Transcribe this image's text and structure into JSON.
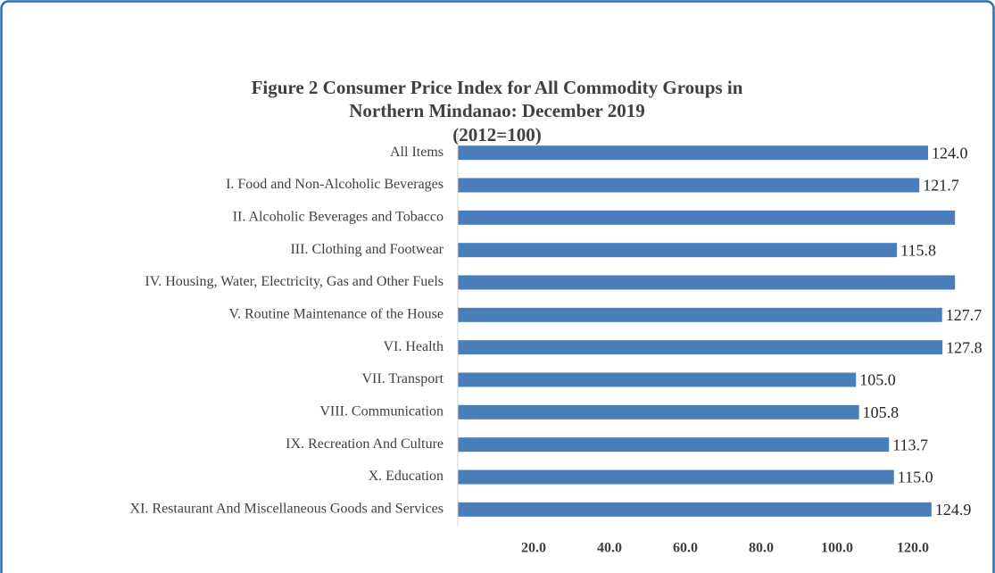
{
  "chart_data": {
    "type": "hbar",
    "title": [
      "Figure 2 Consumer Price Index for All Commodity Groups in",
      "Northern Mindanao: December 2019",
      "(2012=100)"
    ],
    "categories": [
      "All Items",
      "I. Food and Non-Alcoholic Beverages",
      "II. Alcoholic Beverages and Tobacco",
      "III. Clothing and Footwear",
      "IV. Housing, Water, Electricity, Gas and Other Fuels",
      "V. Routine Maintenance of the House",
      "VI. Health",
      "VII. Transport",
      "VIII. Communication",
      "IX. Recreation And Culture",
      "X. Education",
      "XI. Restaurant And Miscellaneous Goods and Services"
    ],
    "values": [
      124.0,
      121.7,
      131.1,
      115.8,
      131.1,
      127.7,
      127.8,
      105.0,
      105.8,
      113.7,
      115.0,
      124.9
    ],
    "value_labels": [
      "124.0",
      "121.7",
      null,
      "115.8",
      null,
      "127.7",
      "127.8",
      "105.0",
      "105.8",
      "113.7",
      "115.0",
      "124.9"
    ],
    "color": "#4a7ebb",
    "xlim": [
      0,
      140
    ],
    "xticks": [
      {
        "value": 20,
        "label": "20.0"
      },
      {
        "value": 40,
        "label": "40.0"
      },
      {
        "value": 60,
        "label": "60.0"
      },
      {
        "value": 80,
        "label": "80.0"
      },
      {
        "value": 100,
        "label": "100.0"
      },
      {
        "value": 120,
        "label": "120.0"
      }
    ],
    "grid": false
  }
}
